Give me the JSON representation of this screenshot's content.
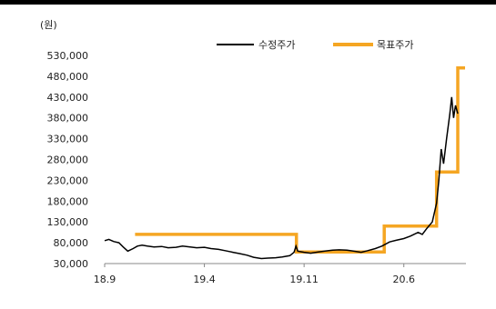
{
  "chart_data": {
    "type": "line",
    "unit_label": "(원)",
    "title": "",
    "xlabel": "",
    "ylabel": "",
    "ylim": [
      30000,
      530000
    ],
    "y_ticks": [
      30000,
      80000,
      130000,
      180000,
      230000,
      280000,
      330000,
      380000,
      430000,
      480000,
      530000
    ],
    "y_tick_labels": [
      "30,000",
      "80,000",
      "130,000",
      "180,000",
      "230,000",
      "280,000",
      "330,000",
      "380,000",
      "430,000",
      "480,000",
      "530,000"
    ],
    "x_ticks": [
      "18.9",
      "19.4",
      "19.11",
      "20.6"
    ],
    "x_range": [
      "2018-09",
      "2020-12"
    ],
    "grid": false,
    "legend_position": "top-right",
    "series": [
      {
        "name": "수정주가",
        "color": "#000000",
        "points": [
          [
            "2018-09-01",
            85000
          ],
          [
            "2018-09-10",
            88000
          ],
          [
            "2018-09-20",
            83000
          ],
          [
            "2018-10-01",
            80000
          ],
          [
            "2018-10-10",
            70000
          ],
          [
            "2018-10-20",
            60000
          ],
          [
            "2018-11-01",
            66000
          ],
          [
            "2018-11-10",
            72000
          ],
          [
            "2018-11-20",
            74000
          ],
          [
            "2018-12-01",
            72000
          ],
          [
            "2018-12-15",
            70000
          ],
          [
            "2019-01-01",
            71000
          ],
          [
            "2019-01-15",
            68000
          ],
          [
            "2019-02-01",
            69000
          ],
          [
            "2019-02-15",
            72000
          ],
          [
            "2019-03-01",
            70000
          ],
          [
            "2019-03-15",
            68000
          ],
          [
            "2019-04-01",
            69000
          ],
          [
            "2019-04-15",
            66000
          ],
          [
            "2019-05-01",
            64000
          ],
          [
            "2019-05-15",
            61000
          ],
          [
            "2019-06-01",
            57000
          ],
          [
            "2019-06-15",
            54000
          ],
          [
            "2019-07-01",
            50000
          ],
          [
            "2019-07-15",
            45000
          ],
          [
            "2019-08-01",
            42000
          ],
          [
            "2019-08-15",
            43000
          ],
          [
            "2019-09-01",
            44000
          ],
          [
            "2019-09-15",
            46000
          ],
          [
            "2019-10-01",
            49000
          ],
          [
            "2019-10-10",
            57000
          ],
          [
            "2019-10-14",
            72000
          ],
          [
            "2019-10-18",
            60000
          ],
          [
            "2019-11-01",
            57000
          ],
          [
            "2019-11-15",
            55000
          ],
          [
            "2019-12-01",
            58000
          ],
          [
            "2019-12-15",
            60000
          ],
          [
            "2020-01-01",
            62000
          ],
          [
            "2020-01-15",
            63000
          ],
          [
            "2020-02-01",
            62000
          ],
          [
            "2020-02-15",
            60000
          ],
          [
            "2020-03-01",
            57000
          ],
          [
            "2020-03-15",
            61000
          ],
          [
            "2020-04-01",
            66000
          ],
          [
            "2020-04-15",
            72000
          ],
          [
            "2020-05-01",
            82000
          ],
          [
            "2020-05-15",
            86000
          ],
          [
            "2020-06-01",
            90000
          ],
          [
            "2020-06-15",
            96000
          ],
          [
            "2020-07-01",
            105000
          ],
          [
            "2020-07-10",
            100000
          ],
          [
            "2020-07-20",
            115000
          ],
          [
            "2020-08-01",
            130000
          ],
          [
            "2020-08-10",
            175000
          ],
          [
            "2020-08-15",
            230000
          ],
          [
            "2020-08-20",
            305000
          ],
          [
            "2020-08-25",
            270000
          ],
          [
            "2020-09-01",
            330000
          ],
          [
            "2020-09-08",
            390000
          ],
          [
            "2020-09-12",
            430000
          ],
          [
            "2020-09-16",
            380000
          ],
          [
            "2020-09-20",
            410000
          ],
          [
            "2020-09-25",
            390000
          ]
        ]
      },
      {
        "name": "목표주가",
        "color": "#f5a623",
        "step": true,
        "points": [
          [
            "2018-11-05",
            100000
          ],
          [
            "2019-10-15",
            100000
          ],
          [
            "2019-10-15",
            58000
          ],
          [
            "2020-04-20",
            58000
          ],
          [
            "2020-04-20",
            120000
          ],
          [
            "2020-08-10",
            120000
          ],
          [
            "2020-08-10",
            250000
          ],
          [
            "2020-09-25",
            250000
          ],
          [
            "2020-09-25",
            500000
          ],
          [
            "2020-10-10",
            500000
          ]
        ]
      }
    ]
  }
}
